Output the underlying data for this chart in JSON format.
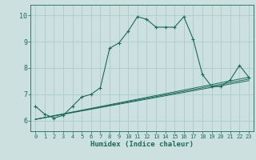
{
  "title": "",
  "xlabel": "Humidex (Indice chaleur)",
  "bg_color": "#cde0e0",
  "grid_color": "#aacccc",
  "line_color": "#1a6b5a",
  "xlim": [
    -0.5,
    23.5
  ],
  "ylim": [
    5.6,
    10.4
  ],
  "yticks": [
    6,
    7,
    8,
    9,
    10
  ],
  "xticks": [
    0,
    1,
    2,
    3,
    4,
    5,
    6,
    7,
    8,
    9,
    10,
    11,
    12,
    13,
    14,
    15,
    16,
    17,
    18,
    19,
    20,
    21,
    22,
    23
  ],
  "main_line_x": [
    0,
    1,
    2,
    3,
    4,
    5,
    6,
    7,
    8,
    9,
    10,
    11,
    12,
    13,
    14,
    15,
    16,
    17,
    18,
    19,
    20,
    21,
    22,
    23
  ],
  "main_line_y": [
    6.55,
    6.25,
    6.1,
    6.2,
    6.55,
    6.9,
    7.0,
    7.25,
    8.75,
    8.95,
    9.4,
    9.95,
    9.85,
    9.55,
    9.55,
    9.55,
    9.95,
    9.1,
    7.75,
    7.3,
    7.3,
    7.55,
    8.1,
    7.65
  ],
  "line1_x": [
    0,
    23
  ],
  "line1_y": [
    6.05,
    7.65
  ],
  "line2_x": [
    0,
    23
  ],
  "line2_y": [
    6.05,
    7.58
  ],
  "line3_x": [
    0,
    23
  ],
  "line3_y": [
    6.05,
    7.52
  ]
}
